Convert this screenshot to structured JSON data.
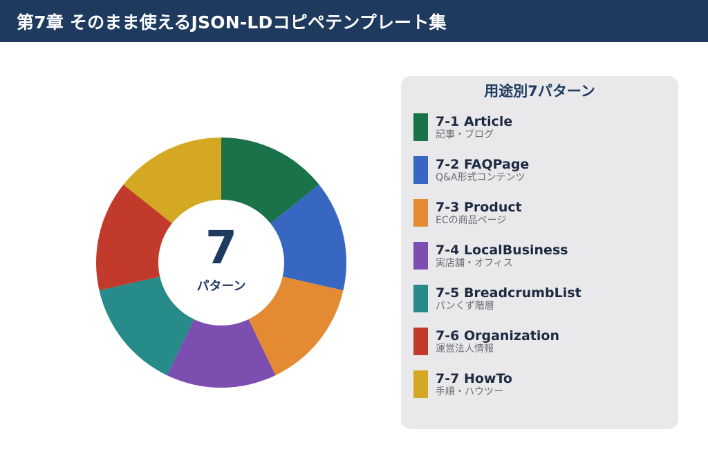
{
  "header": {
    "title": "第7章 そのまま使えるJSON-LDコピペテンプレート集"
  },
  "center": {
    "number": "7",
    "label": "パターン"
  },
  "legend": {
    "title": "用途別7パターン",
    "items": [
      {
        "title": "7-1 Article",
        "subtitle": "記事・ブログ",
        "color": "#1a7248"
      },
      {
        "title": "7-2 FAQPage",
        "subtitle": "Q&A形式コンテンツ",
        "color": "#3767c0"
      },
      {
        "title": "7-3 Product",
        "subtitle": "ECの商品ページ",
        "color": "#e48a32"
      },
      {
        "title": "7-4 LocalBusiness",
        "subtitle": "実店舗・オフィス",
        "color": "#7b4eaf"
      },
      {
        "title": "7-5 BreadcrumbList",
        "subtitle": "パンくず階層",
        "color": "#268b89"
      },
      {
        "title": "7-6 Organization",
        "subtitle": "運営法人情報",
        "color": "#c13a2c"
      },
      {
        "title": "7-7 HowTo",
        "subtitle": "手順・ハウツー",
        "color": "#d4a822"
      }
    ]
  },
  "chart_data": {
    "type": "pie",
    "donut": true,
    "categories": [
      "7-1 Article",
      "7-2 FAQPage",
      "7-3 Product",
      "7-4 LocalBusiness",
      "7-5 BreadcrumbList",
      "7-6 Organization",
      "7-7 HowTo"
    ],
    "values": [
      1,
      1,
      1,
      1,
      1,
      1,
      1
    ],
    "colors": [
      "#1a7248",
      "#3767c0",
      "#e48a32",
      "#7b4eaf",
      "#268b89",
      "#c13a2c",
      "#d4a822"
    ],
    "legend": "right"
  }
}
